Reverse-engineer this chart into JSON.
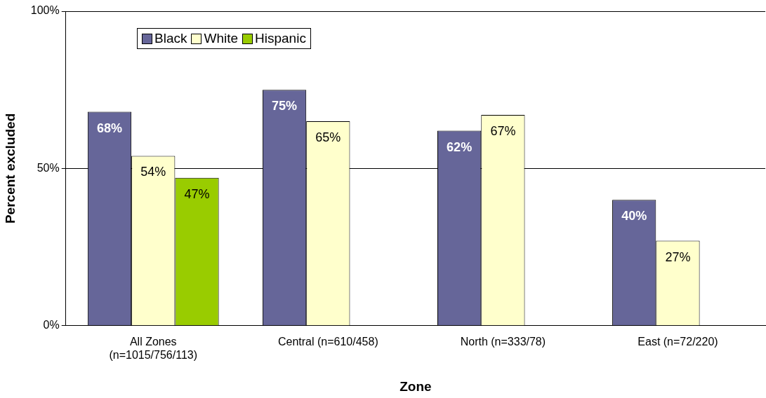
{
  "chart_data": {
    "type": "bar",
    "xlabel": "Zone",
    "ylabel": "Percent excluded",
    "categories": [
      "All Zones\n(n=1015/756/113)",
      "Central (n=610/458)",
      "North (n=333/78)",
      "East (n=72/220)"
    ],
    "series": [
      {
        "name": "Black",
        "color": "#666699",
        "values": [
          68,
          75,
          62,
          40
        ],
        "value_labels": [
          "68%",
          "75%",
          "62%",
          "40%"
        ]
      },
      {
        "name": "White",
        "color": "#ffffcc",
        "values": [
          54,
          65,
          67,
          27
        ],
        "value_labels": [
          "54%",
          "65%",
          "67%",
          "27%"
        ]
      },
      {
        "name": "Hispanic",
        "color": "#99cc00",
        "values": [
          47,
          null,
          null,
          null
        ],
        "value_labels": [
          "47%",
          null,
          null,
          null
        ]
      }
    ],
    "ylim": [
      0,
      100
    ],
    "yticks": [
      {
        "value": 0,
        "label": "0%"
      },
      {
        "value": 50,
        "label": "50%"
      },
      {
        "value": 100,
        "label": "100%"
      }
    ],
    "grid": "y",
    "legend": "top left"
  }
}
